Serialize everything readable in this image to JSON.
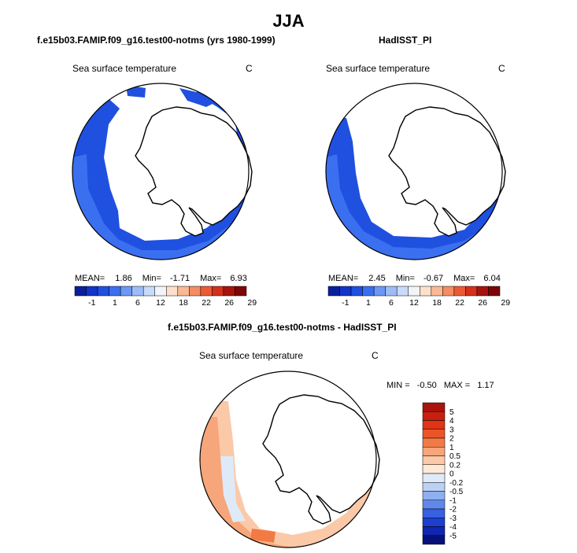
{
  "page": {
    "title": "JJA"
  },
  "panels": [
    {
      "id": "model",
      "header": "f.e15b03.FAMIP.f09_g16.test00-notms (yrs 1980-1999)",
      "variable": "Sea surface temperature",
      "units": "C",
      "stats": {
        "mean_label": "MEAN=",
        "mean": "1.86",
        "min_label": "Min=",
        "min": "-1.71",
        "max_label": "Max=",
        "max": "6.93"
      }
    },
    {
      "id": "obs",
      "header": "HadISST_PI",
      "variable": "Sea surface temperature",
      "units": "C",
      "stats": {
        "mean_label": "MEAN=",
        "mean": "2.45",
        "min_label": "Min=",
        "min": "-0.67",
        "max_label": "Max=",
        "max": "6.04"
      }
    },
    {
      "id": "diff",
      "header": "f.e15b03.FAMIP.f09_g16.test00-notms - HadISST_PI",
      "variable": "Sea surface temperature",
      "units": "C",
      "stats": {
        "min_label": "MIN =",
        "min": "-0.50",
        "max_label": "MAX =",
        "max": "1.17"
      }
    }
  ],
  "chart_data": [
    {
      "type": "heatmap",
      "title": "Sea surface temperature",
      "units": "C",
      "projection": "south polar stereographic",
      "colorbar": {
        "orientation": "horizontal",
        "levels": [
          "-1",
          "1",
          "6",
          "12",
          "18",
          "22",
          "26",
          "29"
        ],
        "colors": [
          "#0a1f9a",
          "#1234c8",
          "#1f50e0",
          "#3a6ff0",
          "#6c97f5",
          "#9dbcf7",
          "#c9dafb",
          "#f2f4f8",
          "#fde0cc",
          "#f9b896",
          "#f58c62",
          "#ec5a35",
          "#d4301c",
          "#a8130e",
          "#7c0708"
        ]
      },
      "stats": {
        "mean": 1.86,
        "min": -1.71,
        "max": 6.93
      }
    },
    {
      "type": "heatmap",
      "title": "Sea surface temperature",
      "units": "C",
      "projection": "south polar stereographic",
      "colorbar": {
        "orientation": "horizontal",
        "levels": [
          "-1",
          "1",
          "6",
          "12",
          "18",
          "22",
          "26",
          "29"
        ],
        "colors": [
          "#0a1f9a",
          "#1234c8",
          "#1f50e0",
          "#3a6ff0",
          "#6c97f5",
          "#9dbcf7",
          "#c9dafb",
          "#f2f4f8",
          "#fde0cc",
          "#f9b896",
          "#f58c62",
          "#ec5a35",
          "#d4301c",
          "#a8130e",
          "#7c0708"
        ]
      },
      "stats": {
        "mean": 2.45,
        "min": -0.67,
        "max": 6.04
      }
    },
    {
      "type": "heatmap",
      "title": "Sea surface temperature",
      "units": "C",
      "projection": "south polar stereographic",
      "colorbar": {
        "orientation": "vertical",
        "levels": [
          "5",
          "4",
          "3",
          "2",
          "1",
          "0.5",
          "0.2",
          "0",
          "-0.2",
          "-0.5",
          "-1",
          "-2",
          "-3",
          "-4",
          "-5"
        ],
        "colors": [
          "#a8130e",
          "#c8200f",
          "#df3416",
          "#ec5428",
          "#f37a45",
          "#f7a57a",
          "#fbc9a8",
          "#fde9d8",
          "#dfeaf8",
          "#bcd2f5",
          "#8fb0f0",
          "#5f88ea",
          "#3761e0",
          "#1c3fcf",
          "#0e26b0",
          "#06107a"
        ]
      },
      "stats": {
        "min": -0.5,
        "max": 1.17
      }
    }
  ]
}
